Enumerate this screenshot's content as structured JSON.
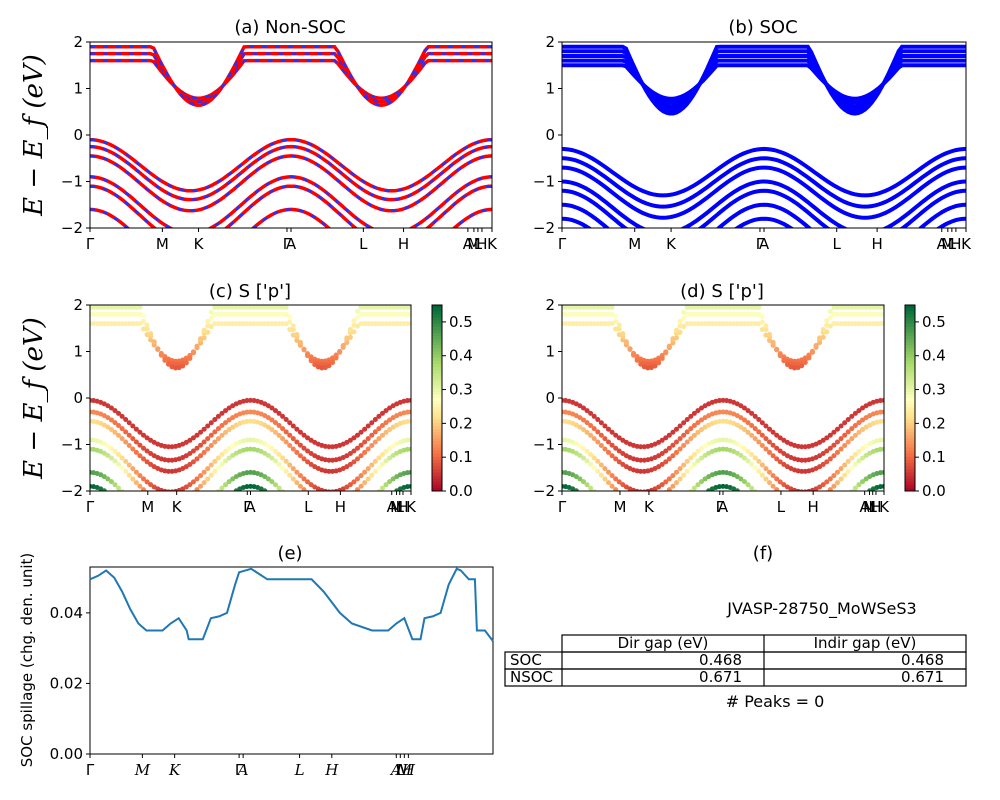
{
  "colors": {
    "nonsoc_primary": "#ff0000",
    "nonsoc_overlay": "#2233ff",
    "soc": "#0000ff",
    "spillage_line": "#1f77b4"
  },
  "chart_data": [
    {
      "panel": "a",
      "type": "line",
      "title": "(a) Non-SOC",
      "ylabel": "E − E_f (eV)",
      "ylim": [
        -2,
        2
      ],
      "yticks": [
        "2",
        "1",
        "0",
        "−1",
        "−2"
      ],
      "xticks": [
        "Γ",
        "M",
        "K",
        "Γ",
        "A",
        "L",
        "H",
        "A",
        "M",
        "L",
        "H",
        "K"
      ],
      "kpath_positions": [
        0,
        0.18,
        0.27,
        0.49,
        0.5,
        0.68,
        0.78,
        0.94,
        0.955,
        0.965,
        0.975,
        1.0
      ],
      "series": [
        {
          "color": "red",
          "dashed_overlay": "blue",
          "valence_max_eV": 0.0,
          "conduction_min_eV": 0.67,
          "valence_bands_eV_at_Gamma": [
            -0.1,
            -0.25,
            -0.45,
            -0.9,
            -1.1,
            -1.6
          ],
          "conduction_bands_eV_at_Gamma": [
            1.6,
            1.75,
            1.9
          ]
        }
      ]
    },
    {
      "panel": "b",
      "type": "line",
      "title": "(b) SOC",
      "ylim": [
        -2,
        2
      ],
      "yticks": [
        "2",
        "1",
        "0",
        "−1",
        "−2"
      ],
      "xticks": [
        "Γ",
        "M",
        "K",
        "Γ",
        "A",
        "L",
        "H",
        "A",
        "M",
        "L",
        "H",
        "K"
      ],
      "series": [
        {
          "color": "blue",
          "valence_max_eV": 0.0,
          "conduction_min_eV": 0.47,
          "valence_bands_eV_at_Gamma": [
            -0.3,
            -0.5,
            -0.7,
            -1.0,
            -1.2,
            -1.5,
            -1.8
          ],
          "conduction_bands_eV_at_Gamma": [
            1.5,
            1.6,
            1.7,
            1.8,
            1.9
          ]
        }
      ]
    },
    {
      "panel": "c",
      "type": "scatter",
      "title": "(c)  S ['p']",
      "ylabel": "E − E_f (eV)",
      "ylim": [
        -2,
        2
      ],
      "yticks": [
        "2",
        "1",
        "0",
        "−1",
        "−2"
      ],
      "xticks": [
        "Γ",
        "M",
        "K",
        "Γ",
        "A",
        "L",
        "H",
        "A",
        "M",
        "L",
        "H",
        "K"
      ],
      "colorbar": {
        "range": [
          0.0,
          0.55
        ],
        "ticks": [
          "0.5",
          "0.4",
          "0.3",
          "0.2",
          "0.1",
          "0.0"
        ],
        "colormap": "RdYlGn"
      }
    },
    {
      "panel": "d",
      "type": "scatter",
      "title": "(d) S ['p']",
      "ylim": [
        -2,
        2
      ],
      "yticks": [
        "2",
        "1",
        "0",
        "−1",
        "−2"
      ],
      "xticks": [
        "Γ",
        "M",
        "K",
        "Γ",
        "A",
        "L",
        "H",
        "A",
        "M",
        "L",
        "H",
        "K"
      ],
      "colorbar": {
        "range": [
          0.0,
          0.55
        ],
        "ticks": [
          "0.5",
          "0.4",
          "0.3",
          "0.2",
          "0.1",
          "0.0"
        ],
        "colormap": "RdYlGn"
      }
    },
    {
      "panel": "e",
      "type": "line",
      "title": "(e)",
      "ylabel": "SOC spillage (chg. den. unit)",
      "ylim": [
        0,
        0.053
      ],
      "yticks": [
        "0.04",
        "0.02",
        "0.00"
      ],
      "xticks": [
        "Γ",
        "M",
        "K",
        "Γ",
        "A",
        "L",
        "H",
        "A",
        "L",
        "M",
        "H"
      ],
      "x": [
        0,
        0.02,
        0.04,
        0.06,
        0.08,
        0.1,
        0.12,
        0.14,
        0.16,
        0.18,
        0.2,
        0.22,
        0.24,
        0.245,
        0.26,
        0.28,
        0.3,
        0.32,
        0.34,
        0.36,
        0.37,
        0.4,
        0.44,
        0.5,
        0.52,
        0.55,
        0.58,
        0.62,
        0.65,
        0.7,
        0.74,
        0.76,
        0.78,
        0.8,
        0.82,
        0.83,
        0.85,
        0.87,
        0.89,
        0.91,
        0.92,
        0.94,
        0.955,
        0.96,
        0.98,
        1.0
      ],
      "values": [
        0.0495,
        0.0505,
        0.052,
        0.05,
        0.046,
        0.041,
        0.037,
        0.035,
        0.035,
        0.035,
        0.037,
        0.0385,
        0.035,
        0.0325,
        0.0325,
        0.0325,
        0.0385,
        0.039,
        0.04,
        0.048,
        0.0515,
        0.0525,
        0.0495,
        0.0495,
        0.0495,
        0.0495,
        0.046,
        0.04,
        0.037,
        0.035,
        0.035,
        0.037,
        0.0385,
        0.0325,
        0.0325,
        0.0385,
        0.039,
        0.04,
        0.048,
        0.0525,
        0.052,
        0.0495,
        0.0495,
        0.035,
        0.035,
        0.032
      ]
    },
    {
      "panel": "f",
      "type": "table",
      "title": "(f)",
      "subtitle": "JVASP-28750_MoWSeS3",
      "columns": [
        "",
        "Dir gap (eV)",
        "Indir gap (eV)"
      ],
      "rows": [
        [
          "SOC",
          "0.468",
          "0.468"
        ],
        [
          "NSOC",
          "0.671",
          "0.671"
        ]
      ],
      "footer": "# Peaks = 0"
    }
  ]
}
